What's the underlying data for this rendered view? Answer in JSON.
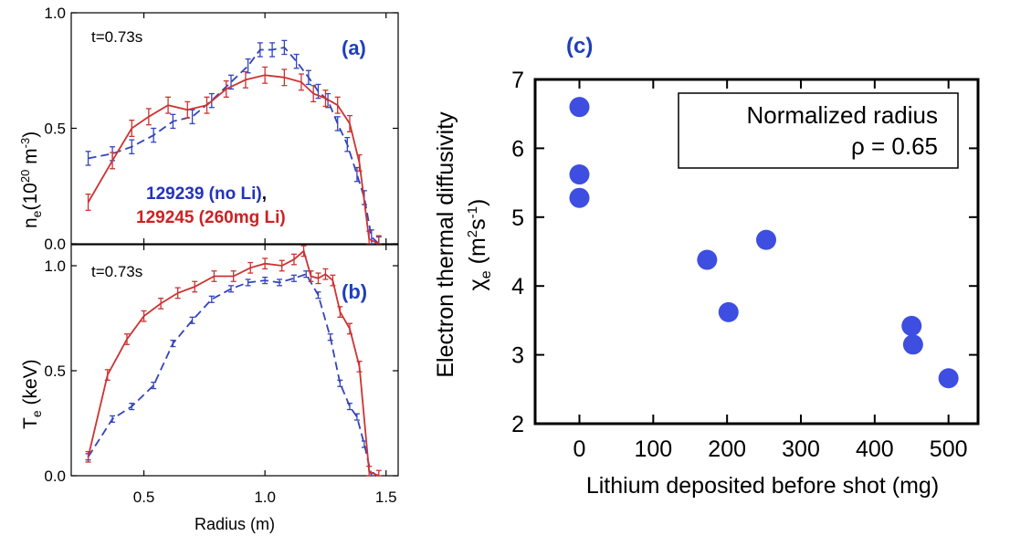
{
  "chart_data": [
    {
      "id": "a",
      "type": "line",
      "panel_label": "(a)",
      "time_label": "t=0.73s",
      "ylabel_main": "n",
      "ylabel_sub": "e",
      "ylabel_unit": "(10",
      "ylabel_exp": "20",
      "ylabel_unit2": " m",
      "ylabel_exp2": "-3",
      "ylabel_close": ")",
      "xlim": [
        0.2,
        1.55
      ],
      "ylim": [
        0,
        1.0
      ],
      "yticks": [
        {
          "value": 0.0,
          "label": "0.0"
        },
        {
          "value": 0.5,
          "label": "0.5"
        },
        {
          "value": 1.0,
          "label": "1.0"
        }
      ],
      "legend": [
        {
          "text": "129239 (no Li)",
          "suffix": ",",
          "color": "#2233bb"
        },
        {
          "text": "129245 (260mg Li)",
          "suffix": "",
          "color": "#cc2222"
        }
      ],
      "series": [
        {
          "name": "129239 (no Li)",
          "color": "#3344bb",
          "dash": "dashed",
          "x": [
            0.27,
            0.37,
            0.45,
            0.54,
            0.62,
            0.7,
            0.78,
            0.86,
            0.93,
            0.98,
            1.03,
            1.08,
            1.13,
            1.18,
            1.22,
            1.26,
            1.3,
            1.34,
            1.38,
            1.41,
            1.44,
            1.47
          ],
          "y": [
            0.37,
            0.39,
            0.42,
            0.47,
            0.53,
            0.55,
            0.62,
            0.7,
            0.77,
            0.84,
            0.84,
            0.85,
            0.79,
            0.72,
            0.66,
            0.62,
            0.52,
            0.43,
            0.3,
            0.2,
            0.03,
            0.0
          ],
          "err": 0.03
        },
        {
          "name": "129245 (260mg Li)",
          "color": "#cc3333",
          "dash": "solid",
          "x": [
            0.27,
            0.37,
            0.45,
            0.52,
            0.6,
            0.68,
            0.76,
            0.84,
            0.92,
            1.0,
            1.08,
            1.15,
            1.2,
            1.25,
            1.3,
            1.35,
            1.39,
            1.43,
            1.47
          ],
          "y": [
            0.18,
            0.36,
            0.5,
            0.55,
            0.6,
            0.58,
            0.6,
            0.67,
            0.71,
            0.73,
            0.72,
            0.7,
            0.65,
            0.63,
            0.6,
            0.52,
            0.35,
            0.02,
            0.0
          ],
          "err": 0.035
        }
      ]
    },
    {
      "id": "b",
      "type": "line",
      "panel_label": "(b)",
      "time_label": "t=0.73s",
      "ylabel_main": "T",
      "ylabel_sub": "e",
      "ylabel_unit": " (keV)",
      "xlim": [
        0.2,
        1.55
      ],
      "ylim": [
        0,
        1.1
      ],
      "xticks": [
        {
          "value": 0.5,
          "label": "0.5"
        },
        {
          "value": 1.0,
          "label": "1.0"
        },
        {
          "value": 1.5,
          "label": "1.5"
        }
      ],
      "yticks": [
        {
          "value": 0.0,
          "label": "0.0"
        },
        {
          "value": 0.5,
          "label": "0.5"
        },
        {
          "value": 1.0,
          "label": "1.0"
        }
      ],
      "xlabel": "Radius (m)",
      "series": [
        {
          "name": "129239 (no Li)",
          "color": "#3344bb",
          "dash": "dashed",
          "x": [
            0.27,
            0.37,
            0.45,
            0.54,
            0.62,
            0.7,
            0.78,
            0.86,
            0.93,
            1.0,
            1.06,
            1.12,
            1.17,
            1.22,
            1.27,
            1.31,
            1.35,
            1.38,
            1.41,
            1.44
          ],
          "y": [
            0.09,
            0.27,
            0.33,
            0.43,
            0.63,
            0.74,
            0.84,
            0.89,
            0.92,
            0.93,
            0.92,
            0.94,
            0.96,
            0.86,
            0.66,
            0.44,
            0.33,
            0.28,
            0.15,
            0.0
          ],
          "err": 0.015
        },
        {
          "name": "129245 (260mg Li)",
          "color": "#cc3333",
          "dash": "solid",
          "x": [
            0.27,
            0.35,
            0.43,
            0.5,
            0.57,
            0.64,
            0.71,
            0.79,
            0.87,
            0.94,
            1.0,
            1.07,
            1.12,
            1.16,
            1.19,
            1.22,
            1.25,
            1.28,
            1.31,
            1.35,
            1.39,
            1.43,
            1.47
          ],
          "y": [
            0.09,
            0.48,
            0.65,
            0.76,
            0.82,
            0.87,
            0.9,
            0.95,
            0.95,
            0.99,
            1.01,
            1.0,
            1.03,
            1.07,
            0.95,
            0.94,
            0.96,
            0.93,
            0.78,
            0.7,
            0.52,
            0.02,
            0.0
          ],
          "err": 0.025
        }
      ]
    },
    {
      "id": "c",
      "type": "scatter",
      "panel_label": "(c)",
      "xlabel": "Lithium deposited before shot (mg)",
      "ylabel_line1": "Electron thermal diffusivity",
      "ylabel_chi": "χ",
      "ylabel_sub": "e",
      "ylabel_unit": " (m",
      "ylabel_exp": "2",
      "ylabel_unit2": "s",
      "ylabel_exp2": "-1",
      "ylabel_close": ")",
      "annotation_line1": "Normalized radius",
      "annotation_line2": "ρ = 0.65",
      "xlim": [
        -60,
        540
      ],
      "ylim": [
        2,
        7
      ],
      "xticks": [
        {
          "value": 0,
          "label": "0"
        },
        {
          "value": 100,
          "label": "100"
        },
        {
          "value": 200,
          "label": "200"
        },
        {
          "value": 300,
          "label": "300"
        },
        {
          "value": 400,
          "label": "400"
        },
        {
          "value": 500,
          "label": "500"
        }
      ],
      "yticks": [
        {
          "value": 2,
          "label": "2"
        },
        {
          "value": 3,
          "label": "3"
        },
        {
          "value": 4,
          "label": "4"
        },
        {
          "value": 5,
          "label": "5"
        },
        {
          "value": 6,
          "label": "6"
        },
        {
          "value": 7,
          "label": "7"
        }
      ],
      "point_color": "#3e4ee0",
      "points": [
        {
          "x": 0,
          "y": 6.6
        },
        {
          "x": 0,
          "y": 5.62
        },
        {
          "x": 0,
          "y": 5.28
        },
        {
          "x": 173,
          "y": 4.38
        },
        {
          "x": 202,
          "y": 3.62
        },
        {
          "x": 253,
          "y": 4.67
        },
        {
          "x": 450,
          "y": 3.42
        },
        {
          "x": 452,
          "y": 3.15
        },
        {
          "x": 500,
          "y": 2.66
        }
      ]
    }
  ]
}
